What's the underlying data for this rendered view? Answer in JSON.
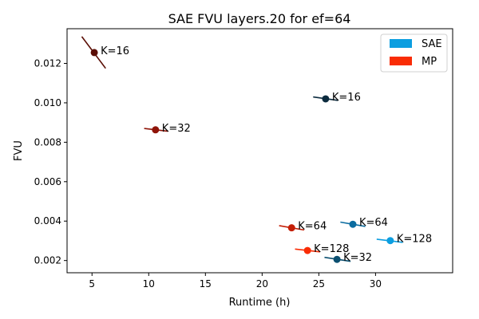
{
  "chart_data": {
    "type": "scatter",
    "title": "SAE FVU layers.20 for ef=64",
    "xlabel": "Runtime (h)",
    "ylabel": "FVU",
    "xlim": [
      2.8,
      36.8
    ],
    "ylim": [
      0.00138,
      0.01376
    ],
    "xticks": [
      5,
      10,
      15,
      20,
      25,
      30
    ],
    "yticks": [
      0.002,
      0.004,
      0.006,
      0.008,
      0.01,
      0.012
    ],
    "ytick_labels": [
      "0.002",
      "0.004",
      "0.006",
      "0.008",
      "0.010",
      "0.012"
    ],
    "grid": false,
    "legend": {
      "placement": "top-right",
      "entries": [
        {
          "label": "SAE",
          "color": "#0c9ee0"
        },
        {
          "label": "MP",
          "color": "#f92c05"
        }
      ]
    },
    "points": [
      {
        "series": "MP",
        "label": "K=16",
        "x": 5.2,
        "y": 0.01255,
        "color": "#5a0e05",
        "seg": [
          [
            4.1,
            0.01336
          ],
          [
            6.2,
            0.01175
          ]
        ]
      },
      {
        "series": "MP",
        "label": "K=32",
        "x": 10.6,
        "y": 0.00863,
        "color": "#8f1408",
        "seg": [
          [
            9.6,
            0.0087
          ],
          [
            11.7,
            0.00856
          ]
        ]
      },
      {
        "series": "MP",
        "label": "K=64",
        "x": 22.6,
        "y": 0.00366,
        "color": "#c41e06",
        "seg": [
          [
            21.5,
            0.00377
          ],
          [
            23.7,
            0.00355
          ]
        ]
      },
      {
        "series": "MP",
        "label": "K=128",
        "x": 24.0,
        "y": 0.00251,
        "color": "#f92c05",
        "seg": [
          [
            22.9,
            0.00258
          ],
          [
            25.1,
            0.00244
          ]
        ]
      },
      {
        "series": "SAE",
        "label": "K=16",
        "x": 25.6,
        "y": 0.0102,
        "color": "#0b2b3e",
        "seg": [
          [
            24.5,
            0.0103
          ],
          [
            26.7,
            0.01012
          ]
        ]
      },
      {
        "series": "SAE",
        "label": "K=32",
        "x": 26.6,
        "y": 0.00206,
        "color": "#0a4f70",
        "seg": [
          [
            25.5,
            0.00216
          ],
          [
            27.8,
            0.00196
          ]
        ]
      },
      {
        "series": "SAE",
        "label": "K=64",
        "x": 28.0,
        "y": 0.00384,
        "color": "#0b6ca0",
        "seg": [
          [
            26.9,
            0.00395
          ],
          [
            29.1,
            0.00373
          ]
        ]
      },
      {
        "series": "SAE",
        "label": "K=128",
        "x": 31.3,
        "y": 0.00301,
        "color": "#0c9ee0",
        "seg": [
          [
            30.1,
            0.00308
          ],
          [
            32.4,
            0.00292
          ]
        ]
      }
    ]
  }
}
